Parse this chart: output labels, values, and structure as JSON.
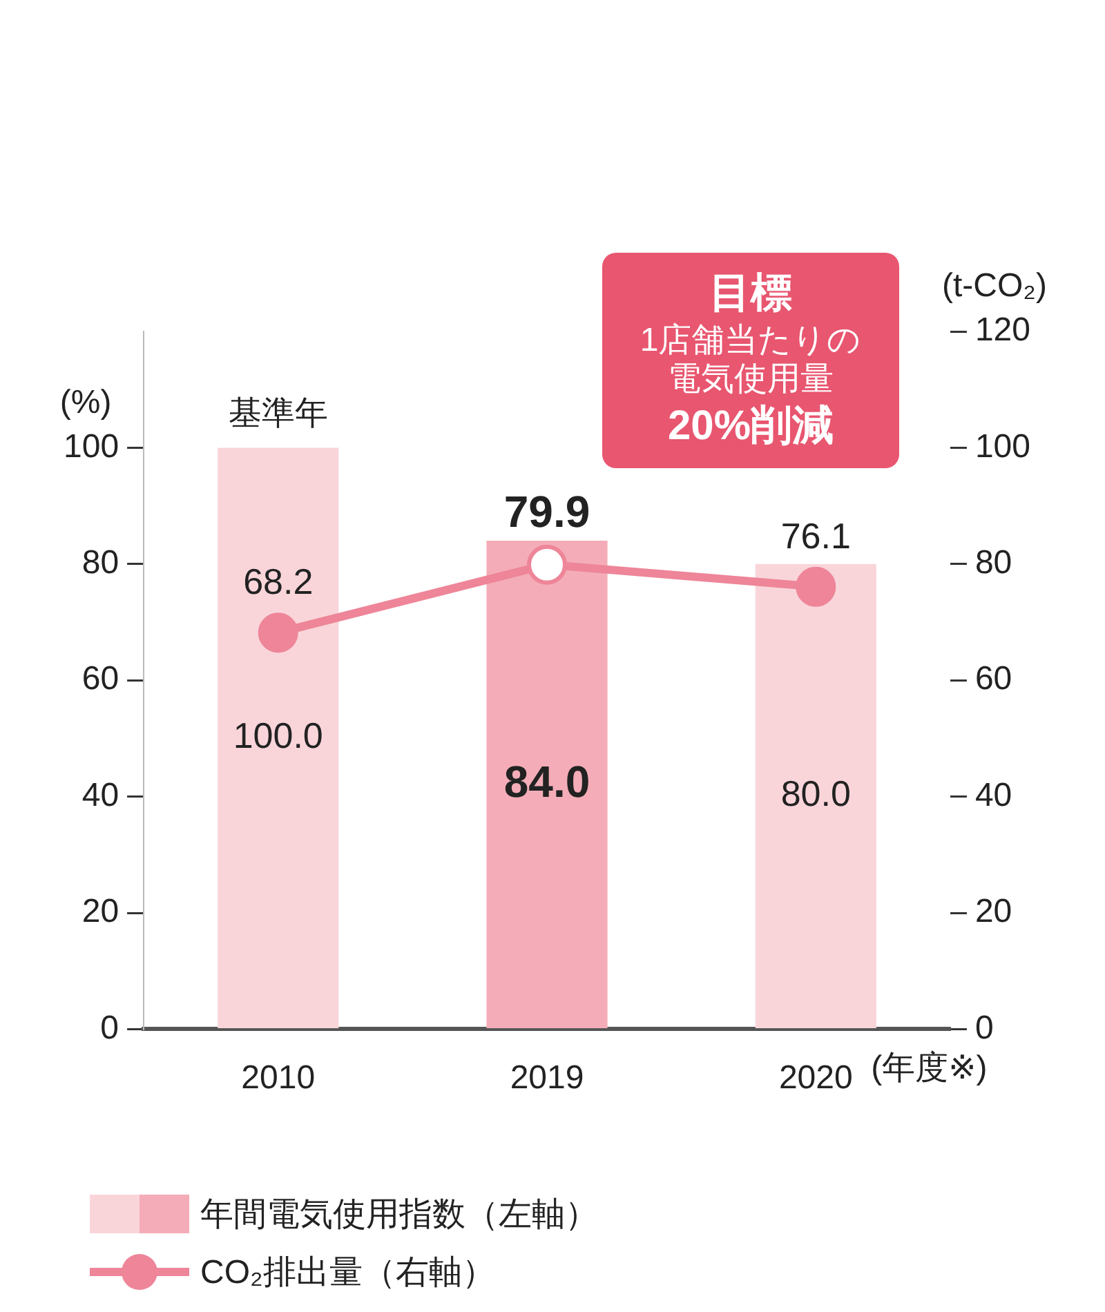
{
  "chart_data": {
    "type": "bar",
    "categories": [
      "2010",
      "2019",
      "2020"
    ],
    "xlabel": "(年度※)",
    "ylabel": "(%)",
    "y2label": "(t-CO₂)",
    "series": [
      {
        "name": "年間電気使用指数（左軸）",
        "type": "bar",
        "colors": [
          "#f9d5da",
          "#f4adb8",
          "#f9d5da"
        ],
        "values": [
          100,
          84,
          80
        ],
        "value_labels": [
          "100.0",
          "84.0",
          "80.0"
        ]
      },
      {
        "name": "CO₂排出量（右軸）",
        "type": "line",
        "axis": "y2",
        "color": "#ee8598",
        "colors": [
          "#ee8598",
          "#ffffff",
          "#ee8598"
        ],
        "values": [
          68.2,
          79.9,
          76.1
        ],
        "value_labels": [
          "68.2",
          "79.9",
          "76.1"
        ]
      }
    ],
    "ylim": [
      0,
      120
    ],
    "yticks": [
      0,
      20,
      40,
      60,
      80,
      100
    ],
    "y2lim": [
      0,
      120
    ],
    "y2ticks": [
      0,
      20,
      40,
      60,
      80,
      100,
      120
    ],
    "grid": false,
    "legend": "bottom left",
    "marker": "circle",
    "line_style": "solid",
    "annotations": [
      {
        "text": "基準年",
        "x": "2010",
        "y": 100
      },
      "目標",
      "1店舗当たりの電気使用量",
      "20%削減"
    ]
  }
}
